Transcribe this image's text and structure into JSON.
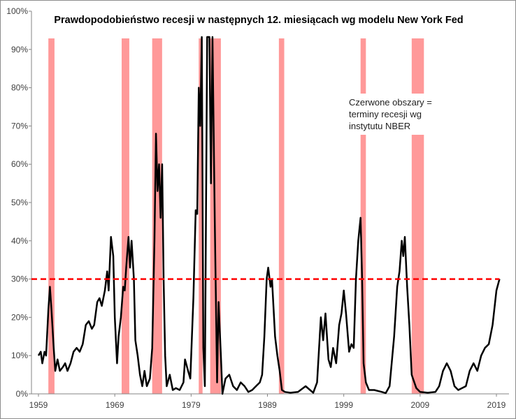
{
  "chart_data": {
    "type": "line",
    "title": "Prawdopodobieństwo recesji w następnych  12. miesiącach wg modelu New York Fed",
    "xlabel": "",
    "ylabel": "",
    "xlim": [
      1959,
      2020
    ],
    "ylim": [
      0,
      100
    ],
    "x_ticks": [
      "1959",
      "1969",
      "1979",
      "1989",
      "1999",
      "2009",
      "2019"
    ],
    "y_ticks": [
      "0%",
      "10%",
      "20%",
      "30%",
      "40%",
      "50%",
      "60%",
      "70%",
      "80%",
      "90%",
      "100%"
    ],
    "grid": false,
    "annotation": "Czerwone obszary = terminy recesji wg instytutu NBER",
    "threshold": {
      "value": 30,
      "color": "#ff0000",
      "style": "dashed"
    },
    "recessions": [
      [
        1960.3,
        1961.1
      ],
      [
        1969.9,
        1970.9
      ],
      [
        1973.9,
        1975.2
      ],
      [
        1980.0,
        1980.5
      ],
      [
        1981.5,
        1982.9
      ],
      [
        1990.5,
        1991.2
      ],
      [
        2001.2,
        2001.9
      ],
      [
        2007.9,
        2009.5
      ]
    ],
    "recession_color": "#ff9999",
    "line_color": "#000000",
    "series": [
      {
        "x": [
          1959,
          1959.3,
          1959.5,
          1959.8,
          1960,
          1960.3,
          1960.5,
          1960.7,
          1961,
          1961.2,
          1961.5,
          1961.8,
          1962.2,
          1962.5,
          1962.8,
          1963.2,
          1963.6,
          1964,
          1964.4,
          1964.8,
          1965.2,
          1965.6,
          1966,
          1966.3,
          1966.7,
          1967,
          1967.3,
          1967.7,
          1968,
          1968.2,
          1968.5,
          1968.8,
          1969,
          1969.3,
          1969.5,
          1969.8,
          1970.1,
          1970.3,
          1970.5,
          1970.8,
          1971,
          1971.2,
          1971.5,
          1971.7,
          1972,
          1972.3,
          1972.6,
          1972.9,
          1973.2,
          1973.6,
          1973.9,
          1974.2,
          1974.4,
          1974.6,
          1974.8,
          1975,
          1975.2,
          1975.4,
          1975.6,
          1975.8,
          1976.2,
          1976.6,
          1977,
          1977.5,
          1978,
          1978.2,
          1978.6,
          1978.9,
          1979.3,
          1979.6,
          1979.8,
          1980,
          1980.2,
          1980.4,
          1980.6,
          1980.8,
          1981.1,
          1981.4,
          1981.6,
          1981.8,
          1982.1,
          1982.4,
          1982.6,
          1982.9,
          1983.1,
          1983.5,
          1984,
          1984.5,
          1985,
          1985.5,
          1986,
          1986.5,
          1987,
          1987.5,
          1988,
          1988.3,
          1988.6,
          1988.9,
          1989.1,
          1989.4,
          1989.6,
          1990,
          1990.3,
          1990.6,
          1990.9,
          1991.3,
          1992,
          1993,
          1994,
          1995,
          1995.5,
          1996,
          1996.3,
          1996.6,
          1997,
          1997.3,
          1997.6,
          1998,
          1998.4,
          1998.7,
          1999,
          1999.3,
          1999.7,
          2000,
          2000.3,
          2000.6,
          2000.9,
          2001.2,
          2001.4,
          2001.6,
          2001.9,
          2002.3,
          2003,
          2004,
          2004.5,
          2005,
          2005.6,
          2006,
          2006.3,
          2006.6,
          2006.8,
          2007,
          2007.3,
          2007.6,
          2007.9,
          2008.5,
          2009,
          2010,
          2011,
          2011.5,
          2012,
          2012.5,
          2013,
          2013.5,
          2014,
          2015,
          2015.5,
          2016,
          2016.5,
          2017,
          2017.5,
          2018,
          2018.5,
          2019,
          2019.4
        ],
        "y": [
          10,
          11,
          8,
          11,
          10,
          22,
          28,
          22,
          12,
          6,
          9,
          6,
          7,
          8,
          6,
          8,
          11,
          12,
          11,
          13,
          18,
          19,
          17,
          18,
          24,
          25,
          23,
          27,
          32,
          27,
          41,
          36,
          20,
          8,
          15,
          20,
          28,
          27,
          33,
          41,
          33,
          40,
          30,
          14,
          10,
          5,
          2,
          6,
          2,
          4,
          12,
          40,
          68,
          53,
          60,
          46,
          60,
          30,
          10,
          2,
          5,
          1,
          1.5,
          1,
          3,
          9,
          6,
          4,
          25,
          48,
          47,
          80,
          70,
          95,
          12,
          2,
          95,
          95,
          55,
          95,
          45,
          3,
          24,
          10,
          0,
          4,
          5,
          2,
          1,
          3,
          2,
          0.5,
          1,
          2,
          3,
          5,
          15,
          30,
          33,
          28,
          30,
          15,
          10,
          6,
          1,
          0.5,
          0.3,
          0.5,
          2,
          0.3,
          3,
          20,
          14,
          21,
          9,
          7,
          12,
          8,
          18,
          21,
          27,
          21,
          11,
          13,
          12,
          30,
          40,
          46,
          30,
          8,
          3,
          1,
          1,
          0.5,
          0.2,
          2,
          15,
          28,
          32,
          40,
          36,
          41,
          28,
          18,
          5,
          1.5,
          0.5,
          0.3,
          0.5,
          2,
          6,
          8,
          6,
          2,
          1,
          2,
          6,
          8,
          6,
          10,
          12,
          13,
          18,
          27,
          30
        ]
      }
    ]
  }
}
